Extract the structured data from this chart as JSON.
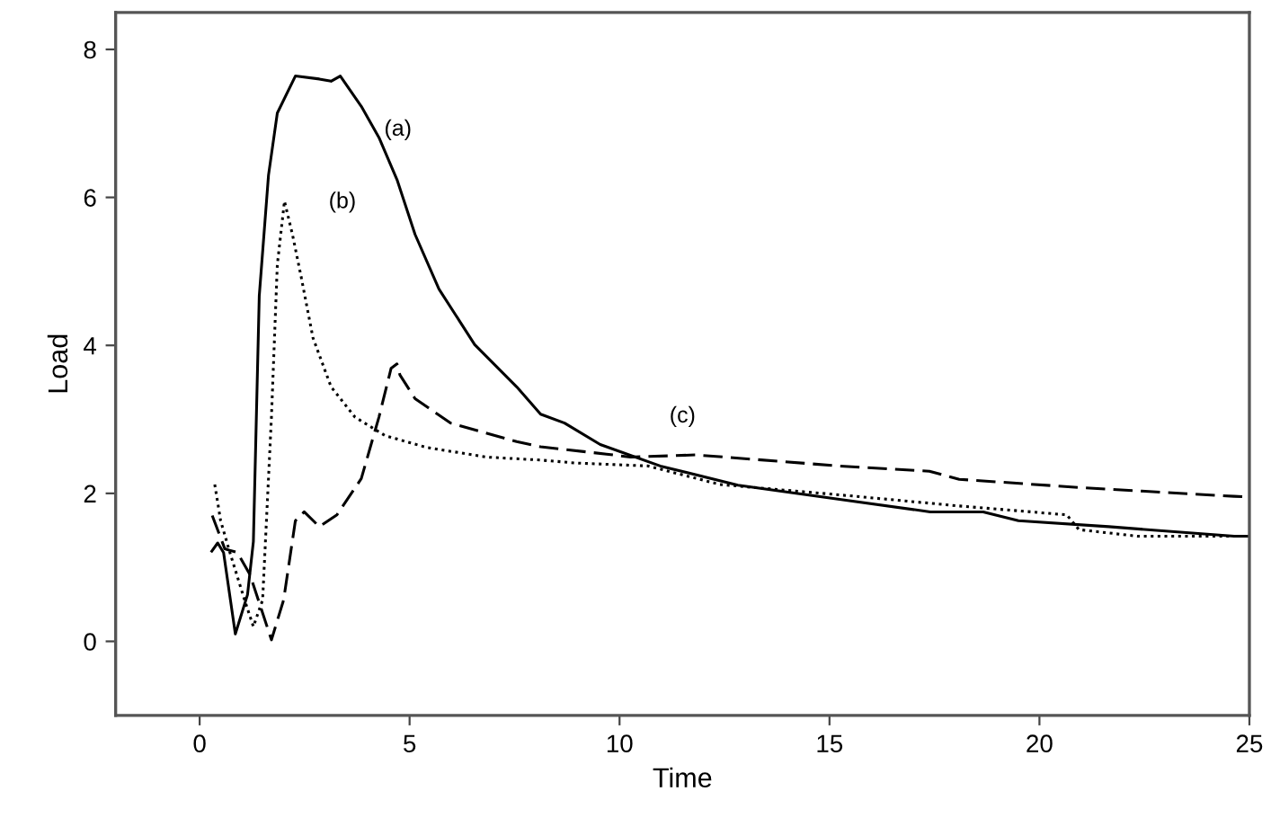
{
  "chart_data": {
    "type": "line",
    "xlabel": "Time",
    "ylabel": "Load",
    "xlim": [
      -2,
      25
    ],
    "ylim": [
      -1,
      8.5
    ],
    "xticks": [
      0,
      5,
      10,
      15,
      20,
      25
    ],
    "yticks": [
      0,
      2,
      4,
      6,
      8
    ],
    "grid": false,
    "marker": "none",
    "series": [
      {
        "color": "#000000",
        "line_style": "solid",
        "x": [
          0.29,
          0.43,
          0.57,
          0.85,
          1.14,
          1.28,
          1.42,
          1.64,
          1.85,
          2.28,
          2.85,
          3.13,
          3.35,
          3.85,
          4.27,
          4.7,
          5.13,
          5.7,
          6.55,
          7.55,
          8.12,
          8.69,
          9.54,
          10.97,
          12.82,
          15.24,
          17.4,
          18.66,
          19.5,
          21.65,
          24.64,
          25
        ],
        "values": [
          1.22,
          1.33,
          1.2,
          0.1,
          0.63,
          1.35,
          4.67,
          6.3,
          7.14,
          7.64,
          7.6,
          7.57,
          7.64,
          7.23,
          6.81,
          6.24,
          5.5,
          4.76,
          4.01,
          3.44,
          3.07,
          2.95,
          2.66,
          2.37,
          2.11,
          1.92,
          1.75,
          1.75,
          1.63,
          1.55,
          1.42,
          1.42
        ]
      },
      {
        "color": "#000000",
        "line_style": "dotted",
        "x": [
          0.36,
          0.5,
          0.71,
          1.07,
          1.28,
          1.5,
          1.71,
          1.85,
          2.02,
          2.21,
          2.42,
          2.7,
          3.13,
          3.7,
          4.42,
          5.41,
          6.84,
          8.12,
          8.97,
          10.68,
          12.39,
          15.24,
          18.09,
          20.65,
          20.94,
          22.36,
          24.64,
          25
        ],
        "values": [
          2.12,
          1.63,
          1.22,
          0.56,
          0.2,
          0.56,
          3.03,
          5.09,
          5.95,
          5.5,
          4.92,
          4.1,
          3.44,
          3.03,
          2.78,
          2.62,
          2.49,
          2.45,
          2.41,
          2.37,
          2.12,
          1.98,
          1.83,
          1.71,
          1.51,
          1.42,
          1.42,
          1.42
        ]
      },
      {
        "color": "#000000",
        "line_style": "dashed",
        "x": [
          0.3,
          0.6,
          0.9,
          1.2,
          1.71,
          2.0,
          2.28,
          2.49,
          2.85,
          3.27,
          3.85,
          4.27,
          4.56,
          4.7,
          4.77,
          5.13,
          5.98,
          7.55,
          8.12,
          9.69,
          10.26,
          11.82,
          15.24,
          17.38,
          18.09,
          20.94,
          24.64,
          25
        ],
        "values": [
          1.7,
          1.25,
          1.2,
          0.9,
          0.02,
          0.56,
          1.63,
          1.75,
          1.55,
          1.71,
          2.2,
          3.03,
          3.69,
          3.75,
          3.6,
          3.28,
          2.95,
          2.7,
          2.63,
          2.53,
          2.49,
          2.52,
          2.37,
          2.3,
          2.19,
          2.08,
          1.96,
          1.95
        ]
      }
    ],
    "annotations": [
      "(a)",
      "(b)",
      "(c)"
    ]
  }
}
